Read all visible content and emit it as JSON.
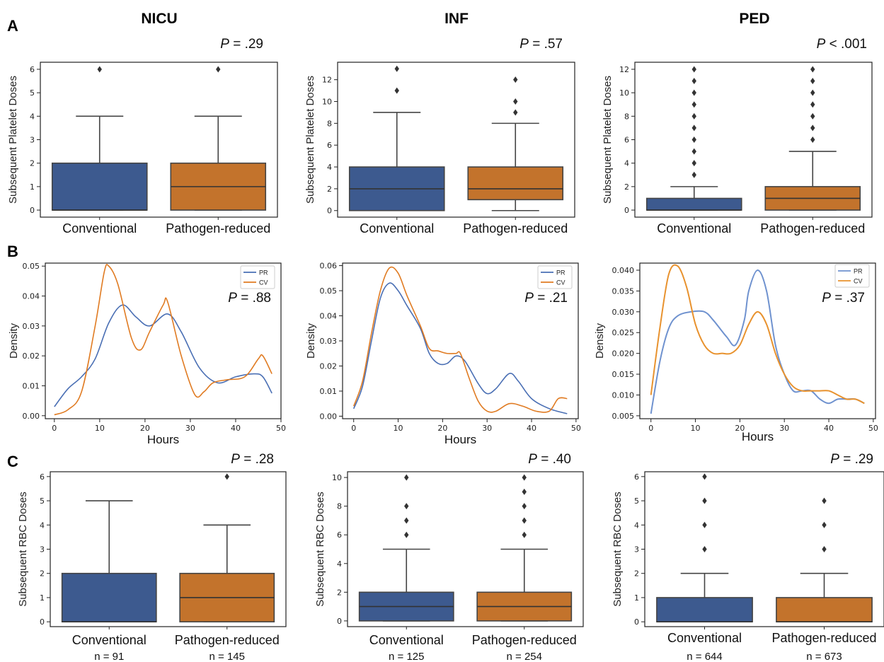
{
  "figure": {
    "row_labels": [
      "A",
      "B",
      "C"
    ],
    "columns": [
      "NICU",
      "INF",
      "PED"
    ],
    "colors": {
      "conventional": "#3d5a8f",
      "pathogen_reduced": "#c3732c",
      "line_pr": "#4a6fb4",
      "line_cv": "#e07b22",
      "ped_pr": "#6f92cf",
      "ped_cv": "#e8922e"
    }
  },
  "chart_data": [
    {
      "type": "box",
      "row": "A",
      "column": "NICU",
      "ylabel": "Subsequent Platelet Doses",
      "p_label": "P",
      "p_text": "= .29",
      "ylim": [
        -0.3,
        6.3
      ],
      "yticks": [
        0,
        1,
        2,
        3,
        4,
        5,
        6
      ],
      "categories": [
        "Conventional",
        "Pathogen-reduced"
      ],
      "boxes": [
        {
          "name": "Conventional",
          "min": 0,
          "q1": 0,
          "median": 0,
          "q3": 2,
          "max": 4,
          "outliers": [
            6
          ]
        },
        {
          "name": "Pathogen-reduced",
          "min": 0,
          "q1": 0,
          "median": 1,
          "q3": 2,
          "max": 4,
          "outliers": [
            6
          ]
        }
      ]
    },
    {
      "type": "box",
      "row": "A",
      "column": "INF",
      "ylabel": "Subsequent Platelet Doses",
      "p_label": "P",
      "p_text": "= .57",
      "ylim": [
        -0.6,
        13.6
      ],
      "yticks": [
        0,
        2,
        4,
        6,
        8,
        10,
        12
      ],
      "categories": [
        "Conventional",
        "Pathogen-reduced"
      ],
      "boxes": [
        {
          "name": "Conventional",
          "min": 0,
          "q1": 0,
          "median": 2,
          "q3": 4,
          "max": 9,
          "outliers": [
            11,
            13
          ]
        },
        {
          "name": "Pathogen-reduced",
          "min": 0,
          "q1": 1,
          "median": 2,
          "q3": 4,
          "max": 8,
          "outliers": [
            9,
            10,
            12
          ]
        }
      ]
    },
    {
      "type": "box",
      "row": "A",
      "column": "PED",
      "ylabel": "Subsequent Platelet Doses",
      "p_label": "P",
      "p_text": "< .001",
      "ylim": [
        -0.6,
        12.6
      ],
      "yticks": [
        0,
        2,
        4,
        6,
        8,
        10,
        12
      ],
      "categories": [
        "Conventional",
        "Pathogen-reduced"
      ],
      "boxes": [
        {
          "name": "Conventional",
          "min": 0,
          "q1": 0,
          "median": 0,
          "q3": 1,
          "max": 2,
          "outliers": [
            3,
            4,
            5,
            6,
            7,
            8,
            9,
            10,
            11,
            12
          ]
        },
        {
          "name": "Pathogen-reduced",
          "min": 0,
          "q1": 0,
          "median": 1,
          "q3": 2,
          "max": 5,
          "outliers": [
            6,
            7,
            8,
            9,
            10,
            11,
            12
          ]
        }
      ]
    },
    {
      "type": "line",
      "row": "B",
      "column": "NICU",
      "xlabel": "Hours",
      "ylabel": "Density",
      "p_label": "P",
      "p_text": "= .88",
      "xlim": [
        -2,
        50
      ],
      "ylim": [
        -0.001,
        0.051
      ],
      "xticks": [
        0,
        10,
        20,
        30,
        40,
        50
      ],
      "yticks": [
        0.0,
        0.01,
        0.02,
        0.03,
        0.04,
        0.05
      ],
      "ytick_labels": [
        "0.00",
        "0.01",
        "0.02",
        "0.03",
        "0.04",
        "0.05"
      ],
      "legend": "top-right",
      "series": [
        {
          "name": "PR",
          "x": [
            0,
            3,
            6,
            9,
            12,
            15,
            18,
            21,
            25,
            28,
            32,
            36,
            40,
            44,
            46,
            48
          ],
          "y": [
            0.003,
            0.009,
            0.013,
            0.019,
            0.031,
            0.037,
            0.033,
            0.03,
            0.034,
            0.028,
            0.016,
            0.011,
            0.013,
            0.014,
            0.013,
            0.0075
          ]
        },
        {
          "name": "CV",
          "x": [
            0,
            3,
            6,
            9,
            11,
            12,
            14,
            17,
            19,
            21,
            24,
            25,
            28,
            31,
            33,
            35,
            38,
            42,
            45,
            46,
            48
          ],
          "y": [
            0.0003,
            0.002,
            0.008,
            0.03,
            0.048,
            0.05,
            0.044,
            0.026,
            0.022,
            0.028,
            0.037,
            0.038,
            0.02,
            0.007,
            0.008,
            0.011,
            0.012,
            0.013,
            0.019,
            0.02,
            0.014
          ]
        }
      ]
    },
    {
      "type": "line",
      "row": "B",
      "column": "INF",
      "xlabel": "Hours",
      "ylabel": "Density",
      "p_label": "P",
      "p_text": "= .21",
      "xlim": [
        -2.5,
        50.5
      ],
      "ylim": [
        -0.001,
        0.061
      ],
      "xticks": [
        0,
        10,
        20,
        30,
        40,
        50
      ],
      "yticks": [
        0.0,
        0.01,
        0.02,
        0.03,
        0.04,
        0.05,
        0.06
      ],
      "ytick_labels": [
        "0.00",
        "0.01",
        "0.02",
        "0.03",
        "0.04",
        "0.05",
        "0.06"
      ],
      "legend": "top-right",
      "series": [
        {
          "name": "PR",
          "x": [
            0,
            2,
            4,
            6,
            8,
            10,
            12,
            15,
            17,
            19,
            21,
            23,
            25,
            28,
            30,
            32,
            35,
            37,
            40,
            44,
            48
          ],
          "y": [
            0.003,
            0.012,
            0.03,
            0.047,
            0.053,
            0.05,
            0.044,
            0.035,
            0.025,
            0.021,
            0.021,
            0.024,
            0.022,
            0.013,
            0.009,
            0.011,
            0.017,
            0.014,
            0.007,
            0.003,
            0.001
          ]
        },
        {
          "name": "CV",
          "x": [
            0,
            2,
            4,
            6,
            8,
            10,
            12,
            15,
            17,
            19,
            21,
            23,
            24,
            26,
            28,
            30,
            32,
            35,
            38,
            41,
            44,
            46,
            48
          ],
          "y": [
            0.004,
            0.014,
            0.033,
            0.05,
            0.059,
            0.057,
            0.048,
            0.036,
            0.027,
            0.026,
            0.025,
            0.025,
            0.025,
            0.015,
            0.006,
            0.002,
            0.002,
            0.005,
            0.004,
            0.002,
            0.002,
            0.007,
            0.007
          ]
        }
      ]
    },
    {
      "type": "line",
      "row": "B",
      "column": "PED",
      "xlabel": "Hours",
      "ylabel": "Density",
      "p_label": "P",
      "p_text": "= .37",
      "xlim": [
        -2.5,
        50.5
      ],
      "ylim": [
        0.0043,
        0.0417
      ],
      "xticks": [
        0,
        10,
        20,
        30,
        40,
        50
      ],
      "yticks": [
        0.005,
        0.01,
        0.015,
        0.02,
        0.025,
        0.03,
        0.035,
        0.04
      ],
      "ytick_labels": [
        "0.005",
        "0.010",
        "0.015",
        "0.020",
        "0.025",
        "0.030",
        "0.035",
        "0.040"
      ],
      "legend": "top-right",
      "series": [
        {
          "name": "PR",
          "x": [
            0,
            2,
            4,
            6,
            9,
            12,
            14,
            17,
            19,
            21,
            22,
            24,
            26,
            28,
            30,
            32,
            34,
            36,
            38,
            40,
            42,
            44,
            46,
            48
          ],
          "y": [
            0.0055,
            0.018,
            0.026,
            0.029,
            0.03,
            0.03,
            0.028,
            0.024,
            0.022,
            0.028,
            0.035,
            0.04,
            0.035,
            0.022,
            0.015,
            0.011,
            0.011,
            0.011,
            0.009,
            0.008,
            0.009,
            0.009,
            0.009,
            0.008
          ]
        },
        {
          "name": "CV",
          "x": [
            0,
            2,
            4,
            6,
            8,
            10,
            12,
            14,
            16,
            18,
            20,
            22,
            24,
            26,
            28,
            30,
            32,
            34,
            36,
            38,
            40,
            42,
            44,
            46,
            48
          ],
          "y": [
            0.01,
            0.026,
            0.039,
            0.041,
            0.036,
            0.027,
            0.022,
            0.02,
            0.02,
            0.02,
            0.022,
            0.027,
            0.03,
            0.027,
            0.02,
            0.015,
            0.012,
            0.011,
            0.011,
            0.011,
            0.011,
            0.01,
            0.009,
            0.009,
            0.008
          ]
        }
      ]
    },
    {
      "type": "box",
      "row": "C",
      "column": "NICU",
      "ylabel": "Subsequent RBC Doses",
      "p_label": "P",
      "p_text": "= .28",
      "ylim": [
        -0.2,
        6.2
      ],
      "yticks": [
        0,
        1,
        2,
        3,
        4,
        5,
        6
      ],
      "categories": [
        "Conventional",
        "Pathogen-reduced"
      ],
      "n_labels": [
        "n = 91",
        "n = 145"
      ],
      "boxes": [
        {
          "name": "Conventional",
          "min": 0,
          "q1": 0,
          "median": 0,
          "q3": 2,
          "max": 5,
          "outliers": []
        },
        {
          "name": "Pathogen-reduced",
          "min": 0,
          "q1": 0,
          "median": 1,
          "q3": 2,
          "max": 4,
          "outliers": [
            6
          ]
        }
      ]
    },
    {
      "type": "box",
      "row": "C",
      "column": "INF",
      "ylabel": "Subsequent RBC Doses",
      "p_label": "P",
      "p_text": "= .40",
      "ylim": [
        -0.4,
        10.4
      ],
      "yticks": [
        0,
        2,
        4,
        6,
        8,
        10
      ],
      "categories": [
        "Conventional",
        "Pathogen-reduced"
      ],
      "n_labels": [
        "n = 125",
        "n = 254"
      ],
      "boxes": [
        {
          "name": "Conventional",
          "min": 0,
          "q1": 0,
          "median": 1,
          "q3": 2,
          "max": 5,
          "outliers": [
            6,
            7,
            8,
            10
          ]
        },
        {
          "name": "Pathogen-reduced",
          "min": 0,
          "q1": 0,
          "median": 1,
          "q3": 2,
          "max": 5,
          "outliers": [
            6,
            7,
            8,
            9,
            10
          ]
        }
      ]
    },
    {
      "type": "box",
      "row": "C",
      "column": "PED",
      "ylabel": "Subsequent RBC Doses",
      "p_label": "P",
      "p_text": "= .29",
      "ylim": [
        -0.2,
        6.2
      ],
      "yticks": [
        0,
        1,
        2,
        3,
        4,
        5,
        6
      ],
      "categories": [
        "Conventional",
        "Pathogen-reduced"
      ],
      "n_labels": [
        "n = 644",
        "n = 673"
      ],
      "boxes": [
        {
          "name": "Conventional",
          "min": 0,
          "q1": 0,
          "median": 0,
          "q3": 1,
          "max": 2,
          "outliers": [
            3,
            4,
            5,
            6
          ]
        },
        {
          "name": "Pathogen-reduced",
          "min": 0,
          "q1": 0,
          "median": 0,
          "q3": 1,
          "max": 2,
          "outliers": [
            3,
            4,
            5
          ]
        }
      ]
    }
  ]
}
